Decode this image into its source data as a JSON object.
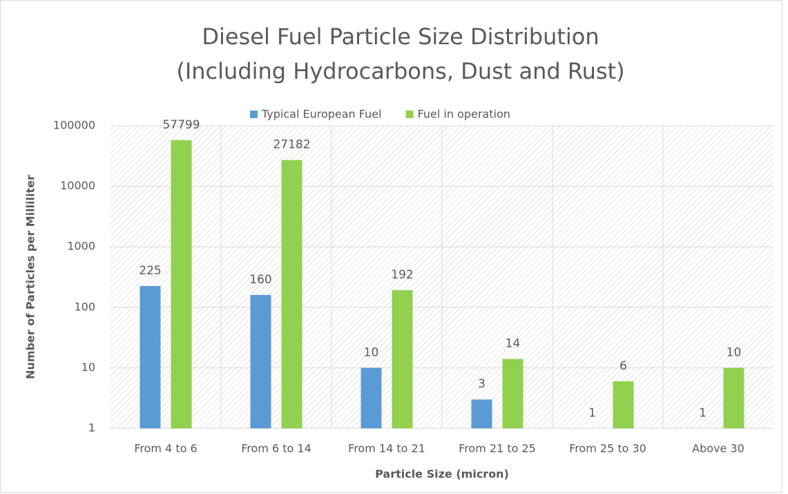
{
  "chart_data": {
    "type": "bar",
    "title": [
      "Diesel Fuel Particle Size Distribution",
      "(Including Hydrocarbons, Dust and Rust)"
    ],
    "x_label": "Particle Size (micron)",
    "y_label": "Number of Particles per Milliliter",
    "categories": [
      "From 4 to 6",
      "From 6 to 14",
      "From 14 to 21",
      "From 21 to 25",
      "From 25 to 30",
      "Above 30"
    ],
    "series": [
      {
        "name": "Typical European Fuel",
        "color": "#5b9bd5",
        "values": [
          225,
          160,
          10,
          3,
          1,
          1
        ]
      },
      {
        "name": "Fuel in operation",
        "color": "#92d050",
        "values": [
          57799,
          27182,
          192,
          14,
          6,
          10
        ]
      }
    ],
    "ylim": [
      1,
      100000
    ],
    "yticks": [
      1,
      10,
      100,
      1000,
      10000,
      100000
    ],
    "log_scale": true,
    "grid": true,
    "legend": "top"
  }
}
